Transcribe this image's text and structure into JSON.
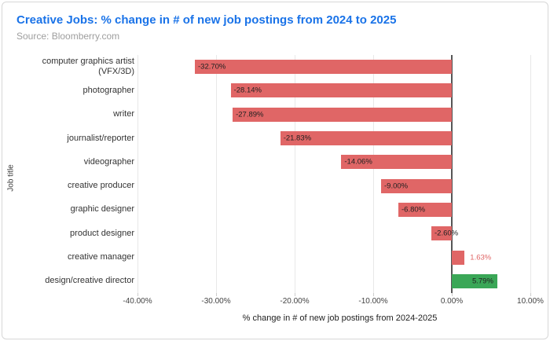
{
  "chart_data": {
    "type": "bar",
    "orientation": "horizontal",
    "title": "Creative Jobs: % change in # of new job postings from 2024 to 2025",
    "source": "Source: Bloomberry.com",
    "xlabel": "% change in # of new job postings from 2024-2025",
    "ylabel": "Job title",
    "xlim": [
      -40,
      11.5
    ],
    "grid": true,
    "legend": "none",
    "xticks": [
      {
        "value": -40,
        "label": "-40.00%"
      },
      {
        "value": -30,
        "label": "-30.00%"
      },
      {
        "value": -20,
        "label": "-20.00%"
      },
      {
        "value": -10,
        "label": "-10.00%"
      },
      {
        "value": 0,
        "label": "0.00%"
      },
      {
        "value": 10,
        "label": "10.00%"
      }
    ],
    "colors": {
      "negative_bar": "#e06666",
      "positive_highlight_bar": "#3aa757",
      "inside_label": "#212121",
      "outside_label": "#e06666"
    },
    "bars": [
      {
        "category": "computer graphics artist\n(VFX/3D)",
        "value": -32.7,
        "label": "-32.70%",
        "color": "#e06666",
        "label_placement": "inside-start",
        "label_color": "#212121"
      },
      {
        "category": "photographer",
        "value": -28.14,
        "label": "-28.14%",
        "color": "#e06666",
        "label_placement": "inside-start",
        "label_color": "#212121"
      },
      {
        "category": "writer",
        "value": -27.89,
        "label": "-27.89%",
        "color": "#e06666",
        "label_placement": "inside-start",
        "label_color": "#212121"
      },
      {
        "category": "journalist/reporter",
        "value": -21.83,
        "label": "-21.83%",
        "color": "#e06666",
        "label_placement": "inside-start",
        "label_color": "#212121"
      },
      {
        "category": "videographer",
        "value": -14.06,
        "label": "-14.06%",
        "color": "#e06666",
        "label_placement": "inside-start",
        "label_color": "#212121"
      },
      {
        "category": "creative producer",
        "value": -9.0,
        "label": "-9.00%",
        "color": "#e06666",
        "label_placement": "inside-start",
        "label_color": "#212121"
      },
      {
        "category": "graphic designer",
        "value": -6.8,
        "label": "-6.80%",
        "color": "#e06666",
        "label_placement": "inside-start",
        "label_color": "#212121"
      },
      {
        "category": "product designer",
        "value": -2.6,
        "label": "-2.60%",
        "color": "#e06666",
        "label_placement": "inside-start",
        "label_color": "#212121"
      },
      {
        "category": "creative manager",
        "value": 1.63,
        "label": "1.63%",
        "color": "#e06666",
        "label_placement": "outside-end",
        "label_color": "#e06666"
      },
      {
        "category": "design/creative director",
        "value": 5.79,
        "label": "5.79%",
        "color": "#3aa757",
        "label_placement": "inside-end",
        "label_color": "#212121"
      }
    ]
  }
}
